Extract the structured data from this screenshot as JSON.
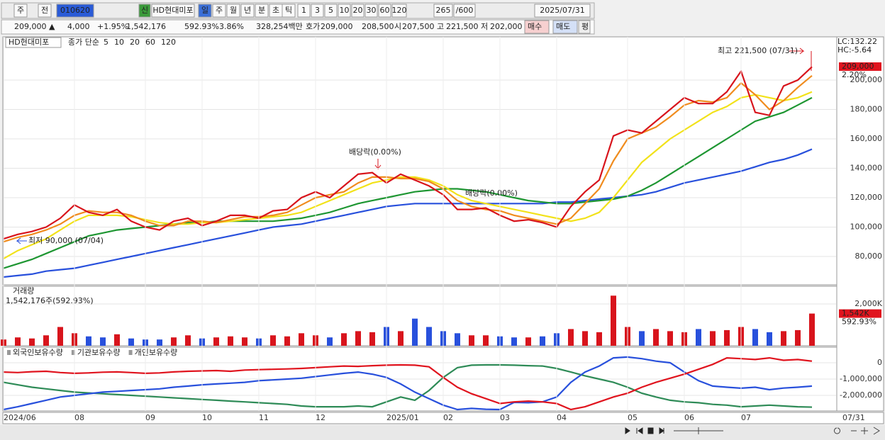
{
  "toolbar": {
    "items": [
      "주",
      "전",
      "010620",
      "신",
      "HD현대미포",
      "일",
      "주",
      "월",
      "년",
      "분",
      "초",
      "틱",
      "1",
      "3",
      "5",
      "10",
      "20",
      "30",
      "60",
      "120",
      "265",
      "/600",
      "2025/07/31"
    ]
  },
  "quote_bar": {
    "items": [
      "209,000 ▲",
      "4,000",
      "+1.95%",
      "1,542,176",
      "592.93%",
      "3.86%",
      "328,254백만",
      "호가",
      "209,000",
      "208,500",
      "시",
      "207,500",
      "고",
      "221,500",
      "저",
      "202,000",
      "매수",
      "매도",
      "평"
    ]
  },
  "chart_data": [
    {
      "type": "line",
      "title": "HD현대미포",
      "legend_title": "종가 단순",
      "ylim": [
        60700,
        229400
      ],
      "yticks": [
        {
          "value": 80000,
          "label": "80,000"
        },
        {
          "value": 100000,
          "label": "100,000"
        },
        {
          "value": 120000,
          "label": "120,000"
        },
        {
          "value": 140000,
          "label": "140,000"
        },
        {
          "value": 160000,
          "label": "160,000"
        },
        {
          "value": 180000,
          "label": "180,000"
        },
        {
          "value": 200000,
          "label": "200,000"
        }
      ],
      "grid": true,
      "series": [
        {
          "name": "5",
          "color": "#d8141c",
          "values": [
            92000,
            95000,
            97000,
            100000,
            106000,
            115000,
            110000,
            108000,
            112000,
            104000,
            100000,
            98000,
            104000,
            106000,
            101000,
            104000,
            108000,
            108000,
            106000,
            111000,
            112000,
            120000,
            124000,
            120000,
            128000,
            136000,
            137000,
            130000,
            136000,
            132000,
            128000,
            122000,
            112000,
            112000,
            113000,
            108000,
            104000,
            105000,
            103000,
            100000,
            114000,
            124000,
            132000,
            162000,
            166000,
            164000,
            172000,
            180000,
            188000,
            184000,
            184000,
            192000,
            206000,
            178000,
            176000,
            196000,
            200000,
            209000
          ]
        },
        {
          "name": "10",
          "color": "#f08c1e",
          "values": [
            90000,
            93000,
            95000,
            98000,
            102000,
            108000,
            111000,
            110000,
            110000,
            108000,
            104000,
            101000,
            101000,
            104000,
            104000,
            103000,
            105000,
            107000,
            107000,
            108000,
            110000,
            115000,
            120000,
            122000,
            124000,
            130000,
            134000,
            134000,
            133000,
            133000,
            131000,
            126000,
            118000,
            114000,
            112000,
            111000,
            108000,
            106000,
            104000,
            102000,
            106000,
            116000,
            126000,
            145000,
            160000,
            164000,
            168000,
            175000,
            183000,
            186000,
            185000,
            188000,
            198000,
            190000,
            180000,
            186000,
            195000,
            203000
          ]
        },
        {
          "name": "20",
          "color": "#f2e21a",
          "values": [
            78500,
            84000,
            88000,
            92000,
            98000,
            104000,
            108000,
            108000,
            108000,
            107000,
            105000,
            103000,
            102000,
            102000,
            103000,
            103000,
            104000,
            105000,
            106000,
            107000,
            108000,
            110000,
            114000,
            118000,
            122000,
            126000,
            130000,
            132000,
            134000,
            134000,
            132000,
            128000,
            122000,
            118000,
            116000,
            114000,
            112000,
            110000,
            108000,
            106000,
            104000,
            106000,
            110000,
            120000,
            132000,
            144000,
            152000,
            160000,
            166000,
            172000,
            178000,
            182000,
            188000,
            190000,
            188000,
            186000,
            188000,
            192000
          ]
        },
        {
          "name": "60",
          "color": "#1e9632",
          "values": [
            72000,
            75000,
            78000,
            82000,
            86000,
            90000,
            94000,
            96000,
            98000,
            99000,
            100000,
            101000,
            102000,
            103000,
            103000,
            104000,
            104000,
            104000,
            104000,
            104000,
            105000,
            106000,
            108000,
            110000,
            113000,
            116000,
            118000,
            120000,
            122000,
            124000,
            125000,
            126000,
            126000,
            125000,
            124000,
            122000,
            120000,
            118000,
            117000,
            116000,
            116000,
            117000,
            118000,
            119000,
            121000,
            125000,
            130000,
            136000,
            142000,
            148000,
            154000,
            160000,
            166000,
            172000,
            175000,
            178000,
            183000,
            188000
          ]
        },
        {
          "name": "120",
          "color": "#2850dc",
          "values": [
            66000,
            67000,
            68000,
            70000,
            71000,
            72000,
            74000,
            76000,
            78000,
            80000,
            82000,
            84000,
            86000,
            88000,
            90000,
            92000,
            94000,
            96000,
            98000,
            100000,
            101000,
            102000,
            104000,
            106000,
            108000,
            110000,
            112000,
            114000,
            115000,
            116000,
            116000,
            116000,
            116000,
            116000,
            116000,
            116000,
            116000,
            116000,
            116000,
            117000,
            117000,
            118000,
            119000,
            120000,
            121000,
            122000,
            124000,
            127000,
            130000,
            132000,
            134000,
            136000,
            138000,
            141000,
            144000,
            146000,
            149000,
            153000
          ]
        }
      ],
      "annotations": [
        "최고 221,500 (07/31)",
        "최저 90,000 (07/04)",
        "배당락(0.00%)",
        "배당락(0.00%)",
        "LC:132.22",
        "HC:-5.64",
        "209,000",
        "2.20%"
      ]
    },
    {
      "type": "bar",
      "title": "거래량",
      "subtitle": "1,542,176주(592.93%)",
      "ylim": [
        0,
        2850
      ],
      "yticks": [
        {
          "value": 2000,
          "label": "2,000K"
        }
      ],
      "last_label": "1,542K",
      "last_ratio": "592.93%",
      "values": [
        300,
        400,
        350,
        500,
        900,
        600,
        450,
        400,
        550,
        350,
        300,
        300,
        400,
        500,
        350,
        400,
        450,
        400,
        350,
        500,
        450,
        600,
        500,
        400,
        600,
        700,
        650,
        900,
        700,
        1300,
        900,
        700,
        600,
        500,
        500,
        450,
        400,
        400,
        450,
        600,
        800,
        700,
        650,
        2400,
        900,
        700,
        800,
        700,
        650,
        800,
        700,
        750,
        900,
        800,
        650,
        700,
        750,
        1542
      ]
    },
    {
      "type": "line",
      "ylim": [
        -2956000,
        956000
      ],
      "yticks": [
        0,
        {
          "value": -1000000,
          "label": "-1,000,000"
        },
        {
          "value": -2000000,
          "label": "-2,000,000"
        }
      ],
      "categories": [
        "2024/06",
        null,
        null,
        null,
        null,
        "08",
        null,
        null,
        null,
        null,
        "09",
        null,
        null,
        null,
        "10",
        null,
        null,
        null,
        "11",
        null,
        null,
        null,
        "12",
        null,
        null,
        null,
        null,
        "2025/01",
        null,
        null,
        null,
        "02",
        null,
        null,
        null,
        "03",
        null,
        null,
        null,
        "04",
        null,
        null,
        null,
        null,
        "05",
        null,
        null,
        null,
        "06",
        null,
        null,
        null,
        "07",
        null,
        null,
        null,
        null,
        null
      ],
      "end_label": "07/31",
      "series": [
        {
          "name": "외국인보유수량",
          "color": "#e0141e",
          "values": [
            -570000,
            -600000,
            -550000,
            -520000,
            -600000,
            -650000,
            -620000,
            -580000,
            -560000,
            -600000,
            -650000,
            -620000,
            -560000,
            -520000,
            -500000,
            -480000,
            -520000,
            -450000,
            -420000,
            -400000,
            -380000,
            -350000,
            -300000,
            -250000,
            -200000,
            -220000,
            -180000,
            -150000,
            -130000,
            -150000,
            -250000,
            -900000,
            -1500000,
            -1900000,
            -2200000,
            -2500000,
            -2400000,
            -2350000,
            -2400000,
            -2500000,
            -2870000,
            -2700000,
            -2400000,
            -2100000,
            -1870000,
            -1500000,
            -1200000,
            -950000,
            -700000,
            -400000,
            -100000,
            300000,
            250000,
            200000,
            300000,
            150000,
            200000,
            100000
          ]
        },
        {
          "name": "기관보유수량",
          "color": "#2850dc",
          "values": [
            -2870000,
            -2700000,
            -2500000,
            -2300000,
            -2100000,
            -2000000,
            -1900000,
            -1800000,
            -1750000,
            -1700000,
            -1650000,
            -1600000,
            -1500000,
            -1430000,
            -1350000,
            -1300000,
            -1250000,
            -1200000,
            -1100000,
            -1050000,
            -1000000,
            -950000,
            -850000,
            -750000,
            -650000,
            -570000,
            -700000,
            -900000,
            -1300000,
            -1800000,
            -2200000,
            -2600000,
            -2870000,
            -2800000,
            -2850000,
            -2870000,
            -2430000,
            -2450000,
            -2400000,
            -2100000,
            -1200000,
            -570000,
            -200000,
            300000,
            350000,
            250000,
            100000,
            0,
            -570000,
            -1100000,
            -1430000,
            -1500000,
            -1560000,
            -1500000,
            -1650000,
            -1550000,
            -1500000,
            -1430000
          ]
        },
        {
          "name": "개인보유수량",
          "color": "#2e8b57",
          "values": [
            -1200000,
            -1350000,
            -1500000,
            -1600000,
            -1700000,
            -1800000,
            -1850000,
            -1900000,
            -1950000,
            -2000000,
            -2050000,
            -2100000,
            -2150000,
            -2200000,
            -2250000,
            -2300000,
            -2350000,
            -2400000,
            -2450000,
            -2500000,
            -2550000,
            -2650000,
            -2700000,
            -2700000,
            -2700000,
            -2650000,
            -2700000,
            -2400000,
            -2100000,
            -2300000,
            -1700000,
            -900000,
            -300000,
            -150000,
            -130000,
            -130000,
            -150000,
            -180000,
            -200000,
            -350000,
            -570000,
            -800000,
            -1000000,
            -1200000,
            -1500000,
            -1870000,
            -2100000,
            -2300000,
            -2400000,
            -2450000,
            -2550000,
            -2600000,
            -2700000,
            -2650000,
            -2600000,
            -2650000,
            -2700000,
            -2720000
          ]
        }
      ]
    }
  ]
}
